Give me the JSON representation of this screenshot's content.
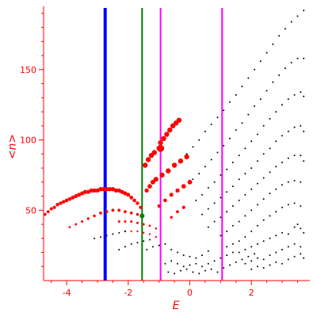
{
  "chart_data": {
    "type": "scatter",
    "title": "",
    "xlabel": "E",
    "ylabel": "<n>",
    "xlim": [
      -4.75,
      3.9
    ],
    "ylim": [
      0,
      195
    ],
    "xticks": [
      -4,
      -2,
      0,
      2
    ],
    "yticks": [
      50,
      100,
      150
    ],
    "xtick_labels": [
      "-4",
      "-2",
      "0",
      "2"
    ],
    "ytick_labels": [
      "50",
      "100",
      "150"
    ],
    "axis_color": "#ff0000",
    "grid": false,
    "vertical_lines": [
      {
        "x": -2.75,
        "color": "#0000ff"
      },
      {
        "x": -1.55,
        "color": "#008000"
      },
      {
        "x": -0.95,
        "color": "#ff00ff"
      },
      {
        "x": 1.05,
        "color": "#ff00ff"
      }
    ],
    "series": [
      {
        "color": "#ff0000",
        "points": [
          [
            -4.7,
            47
          ],
          [
            -4.6,
            49
          ],
          [
            -4.5,
            51
          ],
          [
            -4.4,
            52
          ],
          [
            -4.3,
            54
          ],
          [
            -4.2,
            55
          ],
          [
            -4.1,
            56
          ],
          [
            -4.0,
            57
          ],
          [
            -3.9,
            58
          ],
          [
            -3.8,
            59
          ],
          [
            -3.7,
            60
          ],
          [
            -3.6,
            61
          ],
          [
            -3.5,
            62
          ],
          [
            -3.4,
            63
          ],
          [
            -3.3,
            63
          ],
          [
            -3.2,
            64
          ],
          [
            -3.1,
            64
          ],
          [
            -3.0,
            64
          ],
          [
            -2.9,
            65
          ],
          [
            -2.8,
            65
          ],
          [
            -2.7,
            65
          ],
          [
            -2.6,
            65
          ],
          [
            -2.5,
            65
          ],
          [
            -2.4,
            64
          ],
          [
            -2.3,
            64
          ],
          [
            -2.2,
            63
          ],
          [
            -2.1,
            62
          ],
          [
            -2.0,
            61
          ],
          [
            -1.9,
            59
          ],
          [
            -1.8,
            57
          ],
          [
            -1.7,
            55
          ],
          [
            -1.6,
            52
          ],
          [
            -3.9,
            38
          ],
          [
            -3.7,
            40
          ],
          [
            -3.5,
            42
          ],
          [
            -3.3,
            44
          ],
          [
            -3.1,
            46
          ],
          [
            -2.9,
            48
          ],
          [
            -2.7,
            49
          ],
          [
            -2.5,
            50
          ],
          [
            -2.3,
            50
          ],
          [
            -2.1,
            49
          ],
          [
            -1.9,
            48
          ],
          [
            -1.7,
            47
          ],
          [
            -2.3,
            42
          ],
          [
            -2.1,
            42
          ],
          [
            -1.9,
            42
          ],
          [
            -1.7,
            41
          ],
          [
            -1.5,
            40
          ],
          [
            -1.3,
            39
          ],
          [
            -1.1,
            37
          ],
          [
            -2.1,
            35
          ],
          [
            -1.9,
            35
          ],
          [
            -1.7,
            35
          ],
          [
            -1.5,
            34
          ],
          [
            -1.3,
            33
          ],
          [
            -1.1,
            31
          ],
          [
            -1.0,
            94
          ],
          [
            -0.95,
            98
          ],
          [
            -0.85,
            101
          ],
          [
            -0.75,
            104
          ],
          [
            -0.65,
            107
          ],
          [
            -0.55,
            110
          ],
          [
            -0.45,
            112
          ],
          [
            -0.35,
            114
          ],
          [
            -1.45,
            82
          ],
          [
            -1.35,
            86
          ],
          [
            -1.25,
            89
          ],
          [
            -1.15,
            91
          ],
          [
            -1.4,
            64
          ],
          [
            -1.3,
            67
          ],
          [
            -1.2,
            70
          ],
          [
            -1.1,
            72
          ],
          [
            -0.9,
            75
          ],
          [
            -0.7,
            78
          ],
          [
            -0.5,
            82
          ],
          [
            -0.3,
            85
          ],
          [
            -0.1,
            88
          ],
          [
            -1.0,
            53
          ],
          [
            -0.8,
            57
          ],
          [
            -0.6,
            61
          ],
          [
            -0.4,
            64
          ],
          [
            -0.2,
            67
          ],
          [
            0.0,
            70
          ],
          [
            -0.6,
            45
          ],
          [
            -0.4,
            49
          ],
          [
            -0.2,
            52
          ]
        ]
      },
      {
        "color": "#000000",
        "points": [
          [
            -0.1,
            90
          ],
          [
            0.1,
            95
          ],
          [
            0.3,
            100
          ],
          [
            0.5,
            106
          ],
          [
            0.7,
            111
          ],
          [
            0.9,
            116
          ],
          [
            1.1,
            121
          ],
          [
            1.3,
            127
          ],
          [
            1.5,
            132
          ],
          [
            1.7,
            138
          ],
          [
            1.9,
            144
          ],
          [
            2.1,
            150
          ],
          [
            2.3,
            156
          ],
          [
            2.5,
            162
          ],
          [
            2.7,
            168
          ],
          [
            2.9,
            174
          ],
          [
            3.1,
            179
          ],
          [
            3.3,
            184
          ],
          [
            3.5,
            188
          ],
          [
            3.7,
            192
          ],
          [
            0.1,
            72
          ],
          [
            0.3,
            76
          ],
          [
            0.5,
            81
          ],
          [
            0.7,
            86
          ],
          [
            0.9,
            91
          ],
          [
            1.1,
            96
          ],
          [
            1.3,
            101
          ],
          [
            1.5,
            107
          ],
          [
            1.7,
            112
          ],
          [
            1.9,
            118
          ],
          [
            2.1,
            124
          ],
          [
            2.3,
            129
          ],
          [
            2.5,
            135
          ],
          [
            2.7,
            141
          ],
          [
            2.9,
            146
          ],
          [
            3.1,
            151
          ],
          [
            3.3,
            155
          ],
          [
            3.5,
            158
          ],
          [
            3.7,
            158
          ],
          [
            0.2,
            57
          ],
          [
            0.4,
            61
          ],
          [
            0.6,
            66
          ],
          [
            0.8,
            70
          ],
          [
            1.0,
            75
          ],
          [
            1.2,
            79
          ],
          [
            1.4,
            84
          ],
          [
            1.6,
            89
          ],
          [
            1.8,
            94
          ],
          [
            2.0,
            99
          ],
          [
            2.2,
            104
          ],
          [
            2.4,
            110
          ],
          [
            2.6,
            115
          ],
          [
            2.8,
            120
          ],
          [
            3.0,
            125
          ],
          [
            3.2,
            129
          ],
          [
            3.4,
            132
          ],
          [
            3.6,
            134
          ],
          [
            3.7,
            131
          ],
          [
            0.4,
            47
          ],
          [
            0.6,
            51
          ],
          [
            0.8,
            55
          ],
          [
            1.0,
            59
          ],
          [
            1.2,
            63
          ],
          [
            1.4,
            67
          ],
          [
            1.6,
            72
          ],
          [
            1.8,
            76
          ],
          [
            2.0,
            80
          ],
          [
            2.2,
            85
          ],
          [
            2.4,
            90
          ],
          [
            2.6,
            94
          ],
          [
            2.8,
            99
          ],
          [
            3.0,
            103
          ],
          [
            3.2,
            106
          ],
          [
            3.4,
            109
          ],
          [
            3.6,
            110
          ],
          [
            3.7,
            106
          ],
          [
            0.6,
            38
          ],
          [
            0.8,
            42
          ],
          [
            1.0,
            45
          ],
          [
            1.2,
            49
          ],
          [
            1.4,
            53
          ],
          [
            1.6,
            57
          ],
          [
            1.8,
            61
          ],
          [
            2.0,
            65
          ],
          [
            2.2,
            69
          ],
          [
            2.4,
            73
          ],
          [
            2.6,
            77
          ],
          [
            2.8,
            81
          ],
          [
            3.0,
            84
          ],
          [
            3.2,
            87
          ],
          [
            3.4,
            89
          ],
          [
            3.6,
            89
          ],
          [
            3.7,
            85
          ],
          [
            1.0,
            32
          ],
          [
            1.2,
            35
          ],
          [
            1.4,
            39
          ],
          [
            1.6,
            42
          ],
          [
            1.8,
            46
          ],
          [
            2.0,
            50
          ],
          [
            2.2,
            54
          ],
          [
            2.4,
            58
          ],
          [
            2.6,
            62
          ],
          [
            2.8,
            65
          ],
          [
            3.0,
            68
          ],
          [
            3.2,
            70
          ],
          [
            3.4,
            71
          ],
          [
            3.6,
            70
          ],
          [
            1.6,
            28
          ],
          [
            1.8,
            31
          ],
          [
            2.0,
            35
          ],
          [
            2.2,
            39
          ],
          [
            2.4,
            43
          ],
          [
            2.6,
            46
          ],
          [
            2.8,
            49
          ],
          [
            3.0,
            52
          ],
          [
            3.2,
            54
          ],
          [
            3.4,
            55
          ],
          [
            3.6,
            53
          ],
          [
            -3.1,
            30
          ],
          [
            -2.9,
            31
          ],
          [
            -2.7,
            32
          ],
          [
            -2.5,
            33
          ],
          [
            -2.3,
            34
          ],
          [
            -2.1,
            35
          ],
          [
            -2.3,
            22
          ],
          [
            -2.1,
            24
          ],
          [
            -1.9,
            26
          ],
          [
            -1.7,
            27
          ],
          [
            -1.5,
            28
          ],
          [
            -1.3,
            29
          ],
          [
            -1.4,
            22
          ],
          [
            -1.2,
            24
          ],
          [
            -1.0,
            25
          ],
          [
            -0.8,
            26
          ],
          [
            -0.6,
            22
          ],
          [
            -0.4,
            20
          ],
          [
            -0.2,
            18
          ],
          [
            0.0,
            17
          ],
          [
            0.2,
            16
          ],
          [
            0.4,
            18
          ],
          [
            0.6,
            21
          ],
          [
            -0.8,
            12
          ],
          [
            -0.6,
            14
          ],
          [
            -0.4,
            12
          ],
          [
            -0.2,
            10
          ],
          [
            0.0,
            11
          ],
          [
            0.2,
            12
          ],
          [
            0.4,
            10
          ],
          [
            0.6,
            12
          ],
          [
            0.8,
            14
          ],
          [
            1.0,
            16
          ],
          [
            1.2,
            18
          ],
          [
            1.4,
            20
          ],
          [
            -0.7,
            6
          ],
          [
            -0.5,
            5
          ],
          [
            -0.3,
            7
          ],
          [
            -0.1,
            8
          ],
          [
            0.1,
            6
          ],
          [
            0.3,
            5
          ],
          [
            0.5,
            7
          ],
          [
            0.7,
            8
          ],
          [
            0.9,
            6
          ],
          [
            1.1,
            9
          ],
          [
            1.3,
            11
          ],
          [
            1.5,
            13
          ],
          [
            1.7,
            15
          ],
          [
            1.9,
            17
          ],
          [
            2.1,
            19
          ],
          [
            1.2,
            24
          ],
          [
            1.4,
            26
          ],
          [
            1.6,
            20
          ],
          [
            1.8,
            22
          ],
          [
            2.0,
            24
          ],
          [
            2.2,
            26
          ],
          [
            2.4,
            28
          ],
          [
            2.6,
            30
          ],
          [
            2.8,
            32
          ],
          [
            3.0,
            34
          ],
          [
            3.2,
            33
          ],
          [
            1.8,
            12
          ],
          [
            2.0,
            14
          ],
          [
            2.2,
            16
          ],
          [
            2.4,
            15
          ],
          [
            2.6,
            18
          ],
          [
            2.8,
            20
          ],
          [
            3.0,
            22
          ],
          [
            3.2,
            24
          ],
          [
            3.4,
            26
          ],
          [
            3.6,
            24
          ],
          [
            2.0,
            8
          ],
          [
            2.2,
            10
          ],
          [
            2.4,
            9
          ],
          [
            2.6,
            11
          ],
          [
            2.8,
            13
          ],
          [
            3.0,
            12
          ],
          [
            3.2,
            15
          ],
          [
            3.4,
            17
          ],
          [
            3.6,
            19
          ],
          [
            3.7,
            16
          ],
          [
            3.4,
            38
          ],
          [
            3.5,
            40
          ],
          [
            3.6,
            37
          ],
          [
            3.7,
            34
          ]
        ]
      }
    ],
    "highlight_points": [
      {
        "x": -1.55,
        "y": 46,
        "color": "#008000"
      },
      {
        "x": -0.95,
        "y": 94,
        "color": "#ff0000"
      }
    ]
  }
}
